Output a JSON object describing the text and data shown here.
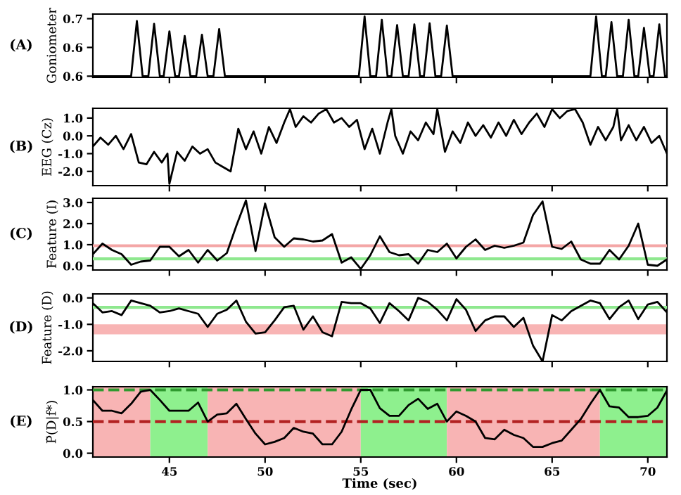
{
  "chart_data": [
    {
      "type": "line",
      "title": "(A)",
      "ylabel": "Goniometer",
      "color": "#000000",
      "xlim": [
        41,
        71
      ],
      "ylim": [
        0.598,
        0.708
      ],
      "xticks": [
        45,
        50,
        55,
        60,
        65,
        70
      ],
      "yticks": [
        0.6,
        {
          "value": 0.65,
          "label": "0.6"
        },
        0.7
      ],
      "tick_labels": "y",
      "x": [
        41,
        43.0,
        43.15,
        43.3,
        43.45,
        43.6,
        43.9,
        44.05,
        44.2,
        44.35,
        44.5,
        44.7,
        44.85,
        45.0,
        45.15,
        45.3,
        45.5,
        45.65,
        45.8,
        45.95,
        46.1,
        46.4,
        46.55,
        46.7,
        46.85,
        47.0,
        47.3,
        47.45,
        47.6,
        47.75,
        47.9,
        54.9,
        55.05,
        55.2,
        55.35,
        55.5,
        55.8,
        55.95,
        56.1,
        56.25,
        56.4,
        56.6,
        56.75,
        56.9,
        57.05,
        57.2,
        57.5,
        57.65,
        57.8,
        57.95,
        58.1,
        58.3,
        58.45,
        58.6,
        58.75,
        58.9,
        59.2,
        59.35,
        59.5,
        59.65,
        59.8,
        67.0,
        67.15,
        67.3,
        67.45,
        67.6,
        67.8,
        67.95,
        68.1,
        68.25,
        68.4,
        68.7,
        68.85,
        69.0,
        69.15,
        69.3,
        69.5,
        69.65,
        69.8,
        69.95,
        70.1,
        70.3,
        70.45,
        70.6,
        70.75,
        70.9,
        71
      ],
      "values": [
        0.6,
        0.6,
        0.648,
        0.696,
        0.648,
        0.6,
        0.6,
        0.646,
        0.691,
        0.646,
        0.6,
        0.6,
        0.639,
        0.678,
        0.639,
        0.6,
        0.6,
        0.635,
        0.67,
        0.635,
        0.6,
        0.6,
        0.636,
        0.672,
        0.636,
        0.6,
        0.6,
        0.641,
        0.682,
        0.641,
        0.6,
        0.6,
        0.652,
        0.704,
        0.652,
        0.6,
        0.6,
        0.649,
        0.698,
        0.649,
        0.6,
        0.6,
        0.645,
        0.689,
        0.645,
        0.6,
        0.6,
        0.645,
        0.69,
        0.645,
        0.6,
        0.6,
        0.646,
        0.692,
        0.646,
        0.6,
        0.6,
        0.644,
        0.688,
        0.644,
        0.6,
        0.6,
        0.652,
        0.704,
        0.652,
        0.6,
        0.6,
        0.647,
        0.694,
        0.647,
        0.6,
        0.6,
        0.649,
        0.698,
        0.649,
        0.6,
        0.6,
        0.642,
        0.684,
        0.642,
        0.6,
        0.6,
        0.645,
        0.69,
        0.645,
        0.6,
        0.6
      ]
    },
    {
      "type": "line",
      "title": "(B)",
      "ylabel": "EEG (Cz)",
      "color": "#000000",
      "xlim": [
        41,
        71
      ],
      "ylim": [
        -2.8,
        1.55
      ],
      "xticks": [
        45,
        50,
        55,
        60,
        65,
        70
      ],
      "yticks": [
        {
          "value": -2,
          "label": "-2.0"
        },
        {
          "value": -1,
          "label": "-1.0"
        },
        {
          "value": 0,
          "label": "0.0"
        },
        {
          "value": 1,
          "label": "1.0"
        }
      ],
      "tick_labels": "y",
      "x": [
        41.0,
        41.4,
        41.8,
        42.2,
        42.6,
        43.0,
        43.4,
        43.8,
        44.2,
        44.6,
        44.9,
        45.0,
        45.4,
        45.8,
        46.2,
        46.6,
        47.0,
        47.4,
        47.8,
        48.2,
        48.6,
        49.0,
        49.4,
        49.8,
        50.2,
        50.6,
        51.0,
        51.3,
        51.6,
        52.0,
        52.4,
        52.8,
        53.2,
        53.6,
        54.0,
        54.4,
        54.8,
        55.2,
        55.6,
        56.0,
        56.4,
        56.6,
        56.8,
        57.2,
        57.6,
        58.0,
        58.4,
        58.8,
        59.0,
        59.4,
        59.8,
        60.2,
        60.6,
        61.0,
        61.4,
        61.8,
        62.2,
        62.6,
        63.0,
        63.4,
        63.8,
        64.2,
        64.6,
        65.0,
        65.4,
        65.8,
        66.2,
        66.6,
        67.0,
        67.4,
        67.8,
        68.2,
        68.4,
        68.6,
        69.0,
        69.4,
        69.8,
        70.2,
        70.6,
        71.0
      ],
      "values": [
        -0.6,
        -0.1,
        -0.5,
        0.0,
        -0.75,
        0.1,
        -1.5,
        -1.6,
        -0.9,
        -1.5,
        -1.0,
        -2.7,
        -0.9,
        -1.4,
        -0.6,
        -1.0,
        -0.75,
        -1.5,
        -1.75,
        -2.0,
        0.4,
        -0.75,
        0.25,
        -1.0,
        0.5,
        -0.4,
        0.75,
        1.5,
        0.5,
        1.1,
        0.75,
        1.25,
        1.5,
        0.75,
        1.0,
        0.5,
        0.9,
        -0.75,
        0.4,
        -1.0,
        0.75,
        1.5,
        0.0,
        -1.0,
        0.25,
        -0.25,
        0.75,
        0.1,
        1.5,
        -0.9,
        0.25,
        -0.4,
        0.75,
        0.0,
        0.6,
        -0.1,
        0.75,
        0.0,
        0.9,
        0.1,
        0.75,
        1.25,
        0.5,
        1.5,
        1.0,
        1.4,
        1.5,
        0.75,
        -0.5,
        0.5,
        -0.25,
        0.5,
        1.5,
        -0.25,
        0.6,
        -0.25,
        0.5,
        -0.4,
        0.0,
        -1.0
      ]
    },
    {
      "type": "line",
      "title": "(C)",
      "ylabel": "Feature (I)",
      "color": "#000000",
      "xlim": [
        41,
        71
      ],
      "ylim": [
        -0.2,
        3.2
      ],
      "xticks": [
        45,
        50,
        55,
        60,
        65,
        70
      ],
      "yticks": [
        {
          "value": 0,
          "label": "0.0"
        },
        {
          "value": 1,
          "label": "1.0"
        },
        {
          "value": 2,
          "label": "2.0"
        },
        {
          "value": 3,
          "label": "3.0"
        }
      ],
      "tick_labels": "y",
      "ref_lines": [
        {
          "axis": "y",
          "value": 0.95,
          "color": "#f4a6a6"
        },
        {
          "axis": "y",
          "value": 0.33,
          "color": "#8ee88e"
        }
      ],
      "x": [
        41,
        41.5,
        42,
        42.5,
        43,
        43.5,
        44,
        44.5,
        45,
        45.5,
        46,
        46.5,
        47,
        47.5,
        48,
        48.5,
        49,
        49.5,
        50,
        50.5,
        51,
        51.5,
        52,
        52.5,
        53,
        53.5,
        54,
        54.5,
        55,
        55.5,
        56,
        56.5,
        57,
        57.5,
        58,
        58.5,
        59,
        59.5,
        60,
        60.5,
        61,
        61.5,
        62,
        62.5,
        63,
        63.5,
        64,
        64.5,
        65,
        65.5,
        66,
        66.5,
        67,
        67.5,
        68,
        68.5,
        69,
        69.5,
        70,
        70.5,
        71
      ],
      "values": [
        0.55,
        1.05,
        0.75,
        0.55,
        0.05,
        0.2,
        0.25,
        0.9,
        0.9,
        0.45,
        0.75,
        0.15,
        0.75,
        0.25,
        0.6,
        1.9,
        3.1,
        0.7,
        2.95,
        1.35,
        0.9,
        1.3,
        1.25,
        1.15,
        1.2,
        1.5,
        0.15,
        0.4,
        -0.15,
        0.5,
        1.4,
        0.65,
        0.5,
        0.55,
        0.1,
        0.75,
        0.65,
        1.05,
        0.35,
        0.9,
        1.25,
        0.75,
        0.95,
        0.85,
        0.95,
        1.1,
        2.4,
        3.05,
        0.9,
        0.8,
        1.15,
        0.3,
        0.1,
        0.1,
        0.75,
        0.3,
        0.95,
        2.0,
        0.05,
        0.0,
        0.3
      ]
    },
    {
      "type": "line",
      "title": "(D)",
      "ylabel": "Feature (D)",
      "color": "#000000",
      "xlim": [
        41,
        71
      ],
      "ylim": [
        -2.4,
        0.15
      ],
      "xticks": [
        45,
        50,
        55,
        60,
        65,
        70
      ],
      "yticks": [
        {
          "value": -2,
          "label": "-2.0"
        },
        {
          "value": -1,
          "label": "-1.0"
        },
        {
          "value": 0,
          "label": "0.0"
        }
      ],
      "tick_labels": "y",
      "ref_lines": [
        {
          "axis": "y",
          "value": -0.36,
          "color": "#8ee88e"
        }
      ],
      "bands": [
        {
          "axis": "y",
          "from": -1.38,
          "to": -1.0,
          "color": "#f8b4b4"
        }
      ],
      "x": [
        41,
        41.5,
        42,
        42.5,
        43,
        43.5,
        44,
        44.5,
        45,
        45.5,
        46,
        46.5,
        47,
        47.5,
        48,
        48.5,
        49,
        49.5,
        50,
        50.5,
        51,
        51.5,
        52,
        52.5,
        53,
        53.5,
        54,
        54.5,
        55,
        55.5,
        56,
        56.5,
        57,
        57.5,
        58,
        58.5,
        59,
        59.5,
        60,
        60.5,
        61,
        61.5,
        62,
        62.5,
        63,
        63.5,
        64,
        64.5,
        65,
        65.5,
        66,
        66.5,
        67,
        67.5,
        68,
        68.5,
        69,
        69.5,
        70,
        70.5,
        71
      ],
      "values": [
        -0.2,
        -0.55,
        -0.5,
        -0.65,
        -0.1,
        -0.2,
        -0.3,
        -0.55,
        -0.5,
        -0.4,
        -0.5,
        -0.6,
        -1.1,
        -0.6,
        -0.45,
        -0.1,
        -0.9,
        -1.35,
        -1.3,
        -0.85,
        -0.35,
        -0.3,
        -1.2,
        -0.7,
        -1.3,
        -1.45,
        -0.15,
        -0.2,
        -0.2,
        -0.4,
        -0.95,
        -0.2,
        -0.5,
        -0.85,
        0.0,
        -0.15,
        -0.45,
        -0.85,
        -0.05,
        -0.45,
        -1.25,
        -0.85,
        -0.7,
        -0.7,
        -1.1,
        -0.75,
        -1.8,
        -2.4,
        -0.65,
        -0.85,
        -0.5,
        -0.3,
        -0.1,
        -0.2,
        -0.8,
        -0.35,
        -0.1,
        -0.8,
        -0.25,
        -0.15,
        -0.55
      ]
    },
    {
      "type": "line",
      "title": "(E)",
      "ylabel": "P̃(D|f*)",
      "xlabel": "Time (sec)",
      "color": "#000000",
      "xlim": [
        41,
        71
      ],
      "ylim": [
        -0.06,
        1.05
      ],
      "xticks": [
        45,
        50,
        55,
        60,
        65,
        70
      ],
      "yticks": [
        {
          "value": 0,
          "label": "0.0"
        },
        0.5,
        {
          "value": 1,
          "label": "1.0"
        }
      ],
      "ref_lines": [
        {
          "axis": "y",
          "value": 1.0,
          "color": "#2f9a2f",
          "line_style": "dashed"
        },
        {
          "axis": "y",
          "value": 0.5,
          "color": "#b22222",
          "line_style": "dashed"
        }
      ],
      "bands": [
        {
          "axis": "x",
          "from": 41,
          "to": 44,
          "color": "#f8b4b4"
        },
        {
          "axis": "x",
          "from": 44,
          "to": 47,
          "color": "#8ef08e"
        },
        {
          "axis": "x",
          "from": 47,
          "to": 55,
          "color": "#f8b4b4"
        },
        {
          "axis": "x",
          "from": 55,
          "to": 59.5,
          "color": "#8ef08e"
        },
        {
          "axis": "x",
          "from": 59.5,
          "to": 67.5,
          "color": "#f8b4b4"
        },
        {
          "axis": "x",
          "from": 67.5,
          "to": 71,
          "color": "#8ef08e"
        }
      ],
      "x": [
        41,
        41.5,
        42,
        42.5,
        43,
        43.5,
        44,
        44.5,
        45,
        45.5,
        46,
        46.5,
        47,
        47.5,
        48,
        48.5,
        49,
        49.5,
        50,
        50.5,
        51,
        51.5,
        52,
        52.5,
        53,
        53.5,
        54,
        54.5,
        55,
        55.5,
        56,
        56.5,
        57,
        57.5,
        58,
        58.5,
        59,
        59.5,
        60,
        60.5,
        61,
        61.5,
        62,
        62.5,
        63,
        63.5,
        64,
        64.5,
        65,
        65.5,
        66,
        66.5,
        67,
        67.5,
        68,
        68.5,
        69,
        69.5,
        70,
        70.5,
        71
      ],
      "values": [
        0.84,
        0.67,
        0.67,
        0.63,
        0.78,
        0.97,
        1.0,
        0.84,
        0.67,
        0.67,
        0.67,
        0.8,
        0.5,
        0.61,
        0.63,
        0.78,
        0.54,
        0.31,
        0.14,
        0.18,
        0.24,
        0.4,
        0.34,
        0.31,
        0.14,
        0.14,
        0.34,
        0.69,
        1.0,
        1.0,
        0.71,
        0.59,
        0.59,
        0.76,
        0.86,
        0.7,
        0.78,
        0.5,
        0.66,
        0.59,
        0.5,
        0.24,
        0.22,
        0.37,
        0.29,
        0.24,
        0.1,
        0.1,
        0.16,
        0.2,
        0.37,
        0.54,
        0.78,
        1.0,
        0.74,
        0.72,
        0.57,
        0.57,
        0.59,
        0.72,
        0.99
      ]
    }
  ]
}
